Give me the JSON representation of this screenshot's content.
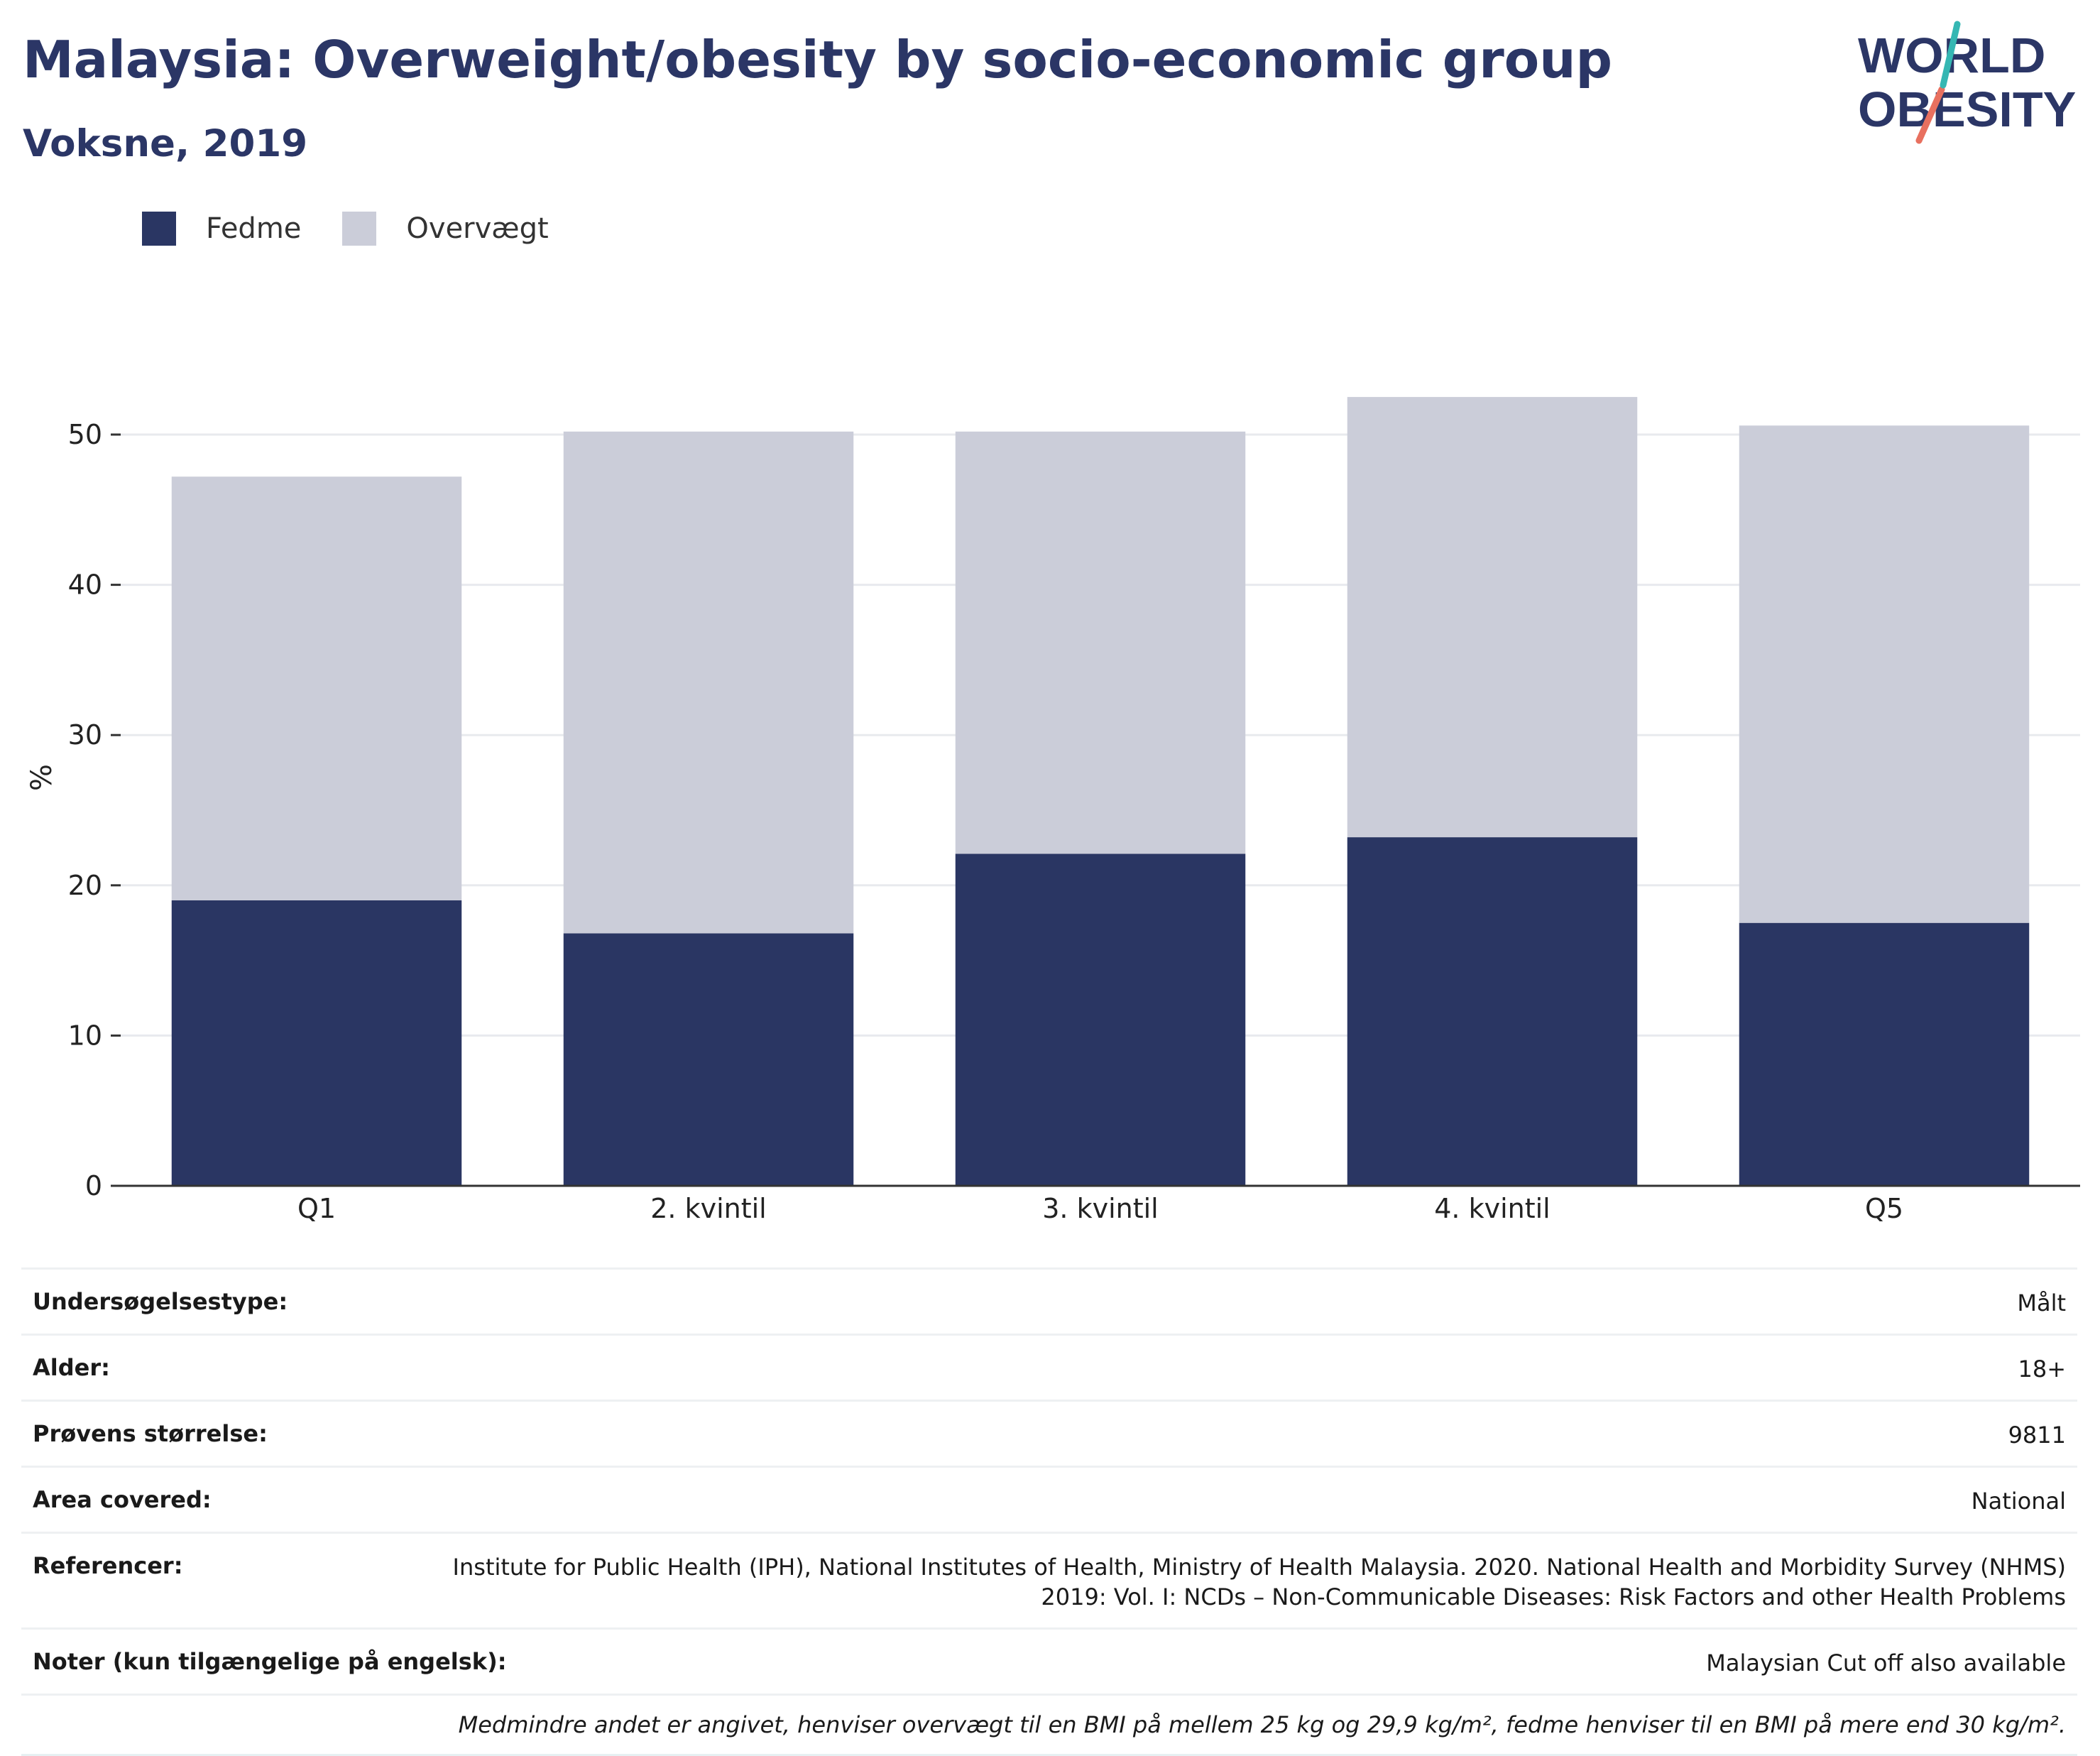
{
  "title": "Malaysia: Overweight/obesity by socio-economic group",
  "subtitle": "Voksne, 2019",
  "logo": {
    "line1": "WORLD",
    "line2": "OBESITY"
  },
  "chart_data": {
    "type": "bar",
    "stacked": true,
    "categories": [
      "Q1",
      "2. kvintil",
      "3. kvintil",
      "4. kvintil",
      "Q5"
    ],
    "series": [
      {
        "name": "Fedme",
        "values": [
          19.0,
          16.8,
          22.1,
          23.2,
          17.5
        ],
        "color": "#2a3663"
      },
      {
        "name": "Overvægt",
        "values": [
          28.2,
          33.4,
          28.1,
          29.3,
          33.1
        ],
        "color": "#cbcdd9"
      }
    ],
    "ylabel": "%",
    "ylim": [
      0,
      55
    ],
    "yticks": [
      0,
      10,
      20,
      30,
      40,
      50
    ],
    "grid": true,
    "legend": "top-left"
  },
  "meta": [
    {
      "key": "Undersøgelsestype:",
      "value": "Målt"
    },
    {
      "key": "Alder:",
      "value": "18+"
    },
    {
      "key": "Prøvens størrelse:",
      "value": "9811"
    },
    {
      "key": "Area covered:",
      "value": "National"
    },
    {
      "key": "Referencer:",
      "value": "Institute for Public Health (IPH), National Institutes of Health, Ministry of Health Malaysia. 2020. National Health and Morbidity Survey (NHMS) 2019: Vol. I: NCDs – Non-Communicable Diseases: Risk Factors and other Health Problems"
    },
    {
      "key": "Noter (kun tilgængelige på engelsk):",
      "value": "Malaysian Cut off also available"
    }
  ],
  "footnote": "Medmindre andet er angivet, henviser overvægt til en BMI på mellem 25 kg og 29,9 kg/m², fedme henviser til en BMI på mere end 30 kg/m²."
}
